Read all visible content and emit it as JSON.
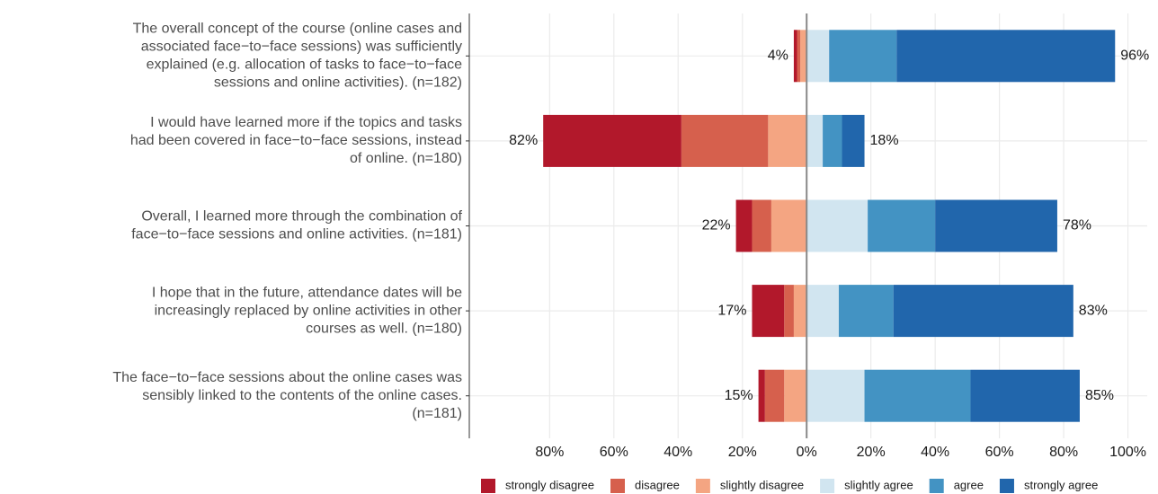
{
  "chart_data": {
    "type": "diverging_bar",
    "categories": [
      [
        "The overall concept of the course (online cases and",
        "associated face−to−face sessions) was sufficiently",
        "explained (e.g. allocation of tasks to face−to−face",
        "sessions and online activities). (n=182)"
      ],
      [
        "I would have learned more if the topics and tasks",
        "had been covered in face−to−face sessions, instead",
        "of online. (n=180)"
      ],
      [
        "Overall, I learned more through the combination of",
        "face−to−face sessions and online activities. (n=181)"
      ],
      [
        "I hope that in the future, attendance dates will be",
        "increasingly replaced by online activities in other",
        "courses as well. (n=180)"
      ],
      [
        "The face−to−face sessions about the online cases was",
        "sensibly linked to the contents of the online cases.",
        "(n=181)"
      ]
    ],
    "series": [
      {
        "name": "strongly disagree",
        "color": "#b2182b",
        "side": "left",
        "values": [
          1,
          43,
          5,
          10,
          2
        ]
      },
      {
        "name": "disagree",
        "color": "#d6604d",
        "side": "left",
        "values": [
          1,
          27,
          6,
          3,
          6
        ]
      },
      {
        "name": "slightly disagree",
        "color": "#f4a582",
        "side": "left",
        "values": [
          2,
          12,
          11,
          4,
          7
        ]
      },
      {
        "name": "slightly agree",
        "color": "#d1e5f0",
        "side": "right",
        "values": [
          7,
          5,
          19,
          10,
          18
        ]
      },
      {
        "name": "agree",
        "color": "#4393c3",
        "side": "right",
        "values": [
          21,
          6,
          21,
          17,
          33
        ]
      },
      {
        "name": "strongly agree",
        "color": "#2166ac",
        "side": "right",
        "values": [
          68,
          7,
          38,
          56,
          34
        ]
      }
    ],
    "left_labels": [
      "4%",
      "82%",
      "22%",
      "17%",
      "15%"
    ],
    "right_labels": [
      "96%",
      "18%",
      "78%",
      "83%",
      "85%"
    ],
    "xlim": [
      -105,
      106
    ],
    "xticks": [
      {
        "value": -80,
        "label": "80%"
      },
      {
        "value": -60,
        "label": "60%"
      },
      {
        "value": -40,
        "label": "40%"
      },
      {
        "value": -20,
        "label": "20%"
      },
      {
        "value": 0,
        "label": "0%"
      },
      {
        "value": 20,
        "label": "20%"
      },
      {
        "value": 40,
        "label": "40%"
      },
      {
        "value": 60,
        "label": "60%"
      },
      {
        "value": 80,
        "label": "80%"
      },
      {
        "value": 100,
        "label": "100%"
      }
    ],
    "grid": true,
    "legend": "bottom"
  }
}
